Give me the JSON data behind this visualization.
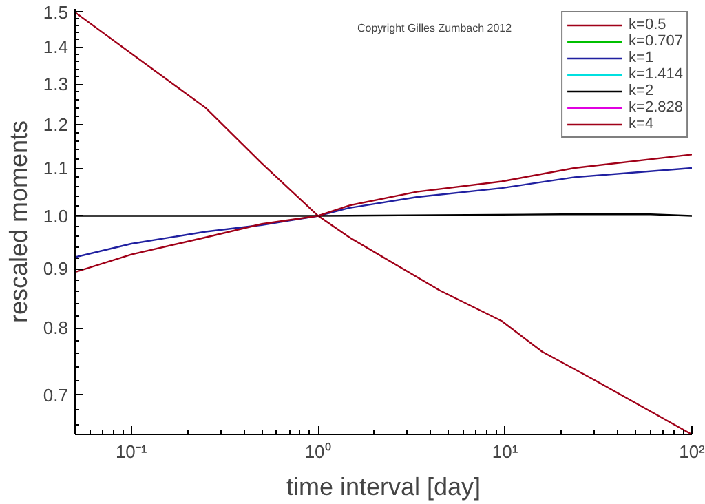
{
  "chart_data": {
    "type": "line",
    "xlabel": "time interval [day]",
    "ylabel": "rescaled moments",
    "log": "xy",
    "grid": false,
    "legend": "top right",
    "annotations": [
      "Copyright Gilles Zumbach 2012"
    ],
    "xlim": [
      0.05,
      100
    ],
    "ylim": [
      0.647,
      1.51
    ],
    "xticks": [
      {
        "value": 0.1,
        "label": "10⁻¹"
      },
      {
        "value": 1,
        "label": "10⁰"
      },
      {
        "value": 10,
        "label": "10¹"
      },
      {
        "value": 100,
        "label": "10²"
      }
    ],
    "yticks": [
      0.7,
      0.8,
      0.9,
      {
        "value": 1,
        "label": "1.0"
      },
      1.1,
      1.2,
      1.3,
      1.4,
      1.5
    ],
    "series": [
      {
        "name": "k=0.5",
        "color": "#a00018",
        "x": [
          0.05,
          0.25,
          0.5,
          1,
          1.47,
          4.47,
          9.6,
          15.8,
          30.6,
          100
        ],
        "values": [
          1.5,
          1.24,
          1.11,
          1.0,
          0.958,
          0.862,
          0.811,
          0.763,
          0.72,
          0.647
        ]
      },
      {
        "name": "k=0.707",
        "color": "#00c000"
      },
      {
        "name": "k=1",
        "color": "#2020a0",
        "x": [
          0.05,
          0.1,
          0.25,
          0.5,
          1,
          1.47,
          3.36,
          9.6,
          23.5,
          100
        ],
        "values": [
          0.921,
          0.946,
          0.969,
          0.982,
          1.0,
          1.016,
          1.038,
          1.057,
          1.08,
          1.1
        ]
      },
      {
        "name": "k=1.414",
        "color": "#00e0e0"
      },
      {
        "name": "k=2",
        "color": "#000000",
        "x": [
          0.05,
          1,
          20,
          60,
          100
        ],
        "values": [
          1.0,
          1.0,
          1.003,
          1.003,
          1.0
        ]
      },
      {
        "name": "k=2.828",
        "color": "#e000e0"
      },
      {
        "name": "k=4",
        "color": "#a00018",
        "x": [
          0.05,
          0.1,
          0.25,
          0.5,
          1,
          1.47,
          3.36,
          9.6,
          23.5,
          100
        ],
        "values": [
          0.894,
          0.926,
          0.958,
          0.984,
          1.0,
          1.021,
          1.049,
          1.071,
          1.1,
          1.13
        ]
      }
    ]
  }
}
